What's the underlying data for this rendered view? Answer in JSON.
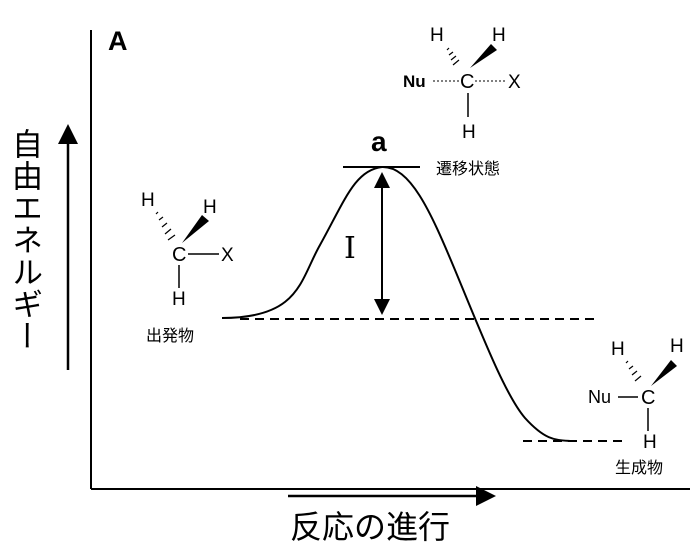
{
  "panel_label": "A",
  "axes": {
    "y_label": "自由エネルギー",
    "x_label": "反応の進行"
  },
  "transition_state": {
    "point_label": "a",
    "caption": "遷移状態",
    "nucleophile": "Nu",
    "carbon": "C",
    "leaving_group": "X",
    "hydrogen": "H"
  },
  "activation_energy_label": "I",
  "reactant": {
    "caption": "出発物",
    "carbon": "C",
    "leaving_group": "X",
    "hydrogen": "H"
  },
  "product": {
    "caption": "生成物",
    "nucleophile": "Nu",
    "carbon": "C",
    "hydrogen": "H"
  },
  "colors": {
    "ink": "#000000",
    "background": "#ffffff"
  }
}
